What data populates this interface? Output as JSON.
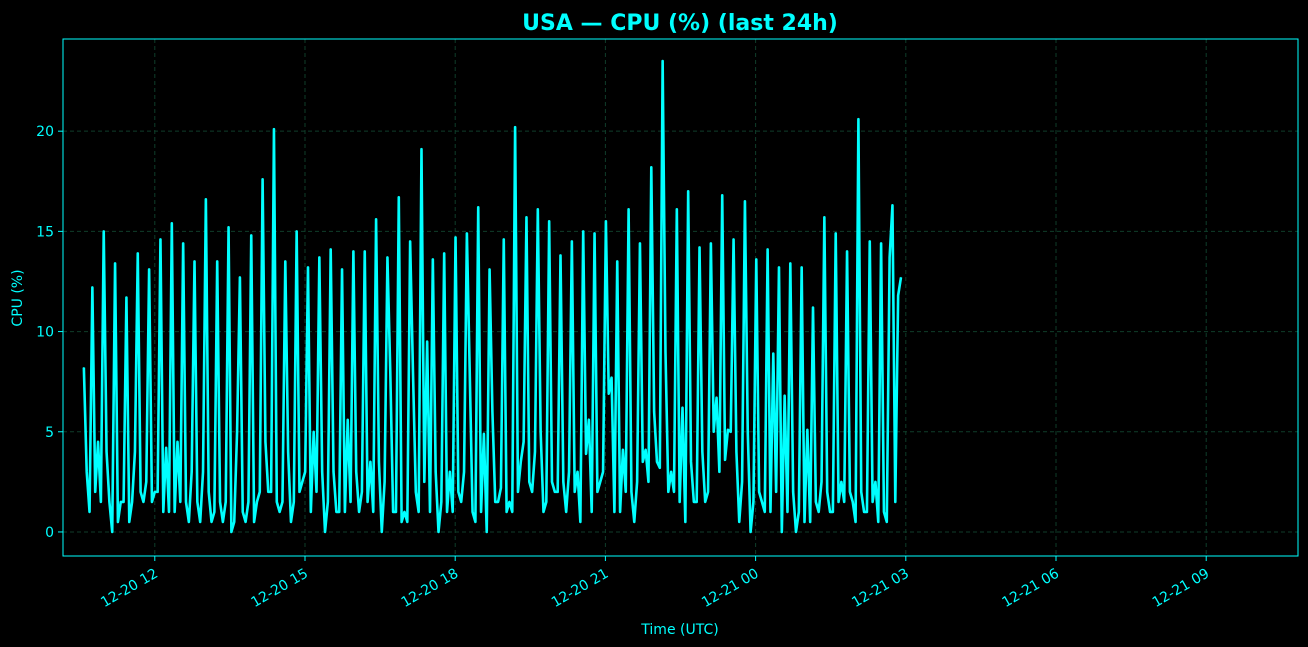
{
  "colors": {
    "background": "#000000",
    "accent": "#00ffff",
    "grid": "#0f3d2a"
  },
  "chart_data": {
    "type": "line",
    "title": "USA — CPU (%) (last 24h)",
    "xlabel": "Time (UTC)",
    "ylabel": "CPU (%)",
    "ylim": [
      -1.2,
      24.6
    ],
    "xlim": [
      "2020-12-20 10:10",
      "2020-12-21 10:50"
    ],
    "x_ticks": [
      "12-20 12",
      "12-20 15",
      "12-20 18",
      "12-20 21",
      "12-21 00",
      "12-21 03",
      "12-21 06",
      "12-21 09"
    ],
    "y_ticks": [
      0,
      5,
      10,
      15,
      20
    ],
    "grid": true,
    "series": [
      {
        "start": "2020-12-20 10:35",
        "interval_minutes": 3.4,
        "values": [
          8.2,
          3,
          1,
          12.2,
          2,
          4.5,
          1.5,
          15,
          4,
          1.5,
          0,
          13.4,
          0.5,
          1.5,
          1.5,
          11.7,
          0.5,
          1.5,
          4,
          13.9,
          2,
          1.5,
          2.5,
          13.1,
          1.5,
          2,
          2,
          14.6,
          1,
          4.2,
          1,
          15.4,
          1,
          4.5,
          1.5,
          14.4,
          1.5,
          0.5,
          3,
          13.5,
          1.5,
          0.5,
          3,
          16.6,
          2,
          0.5,
          1,
          13.5,
          1.5,
          0.5,
          1.5,
          15.2,
          0,
          0.5,
          5,
          12.7,
          1,
          0.5,
          1.5,
          14.8,
          0.5,
          1.5,
          2,
          17.6,
          4.5,
          2,
          2,
          20.1,
          1.5,
          1,
          1.5,
          13.5,
          4,
          0.5,
          1.5,
          15,
          2,
          2.5,
          3,
          13.2,
          1,
          5,
          2,
          13.7,
          3,
          0,
          1.5,
          14.1,
          3,
          1,
          1,
          13.1,
          1,
          5.6,
          1.5,
          14,
          3,
          1,
          2,
          14,
          1.5,
          3.5,
          1,
          15.6,
          3.5,
          0,
          2.5,
          13.7,
          8,
          1,
          1,
          16.7,
          0.5,
          1,
          0.5,
          14.5,
          8,
          2,
          1,
          19.1,
          2.5,
          9.5,
          1,
          13.6,
          3,
          0,
          1.5,
          13.9,
          1,
          3,
          1,
          14.7,
          2,
          1.5,
          3,
          14.9,
          8,
          1,
          0.5,
          16.2,
          1,
          4.9,
          0,
          13.1,
          6,
          1.5,
          1.5,
          2.2,
          14.6,
          1,
          1.5,
          1,
          20.2,
          2,
          3.5,
          4.5,
          15.7,
          2.5,
          2,
          4,
          16.1,
          5,
          1,
          1.5,
          15.5,
          2.5,
          2,
          2,
          13.8,
          2.5,
          1,
          3,
          14.5,
          2,
          3,
          0.5,
          15,
          3.9,
          5.6,
          1,
          14.9,
          2,
          2.5,
          3,
          15.5,
          6.9,
          7.7,
          1,
          13.5,
          1,
          4.1,
          2,
          16.1,
          2,
          0.5,
          2.5,
          14.4,
          3.5,
          4.1,
          2.5,
          18.2,
          6,
          3.5,
          3.2,
          23.5,
          9,
          2,
          3,
          2,
          16.1,
          1.5,
          6.2,
          0.5,
          17,
          3.5,
          1.5,
          1.5,
          14.2,
          4,
          1.5,
          2,
          14.4,
          5,
          6.7,
          3,
          16.8,
          3.6,
          5.1,
          5,
          14.6,
          4,
          0.5,
          2.5,
          16.5,
          5,
          0,
          1.5,
          13.6,
          2,
          1.5,
          1,
          14.1,
          1,
          8.9,
          2,
          13.2,
          0,
          6.8,
          1,
          13.4,
          2,
          0,
          1,
          13.2,
          0.5,
          5.1,
          0.5,
          11.2,
          1.5,
          1,
          2.5,
          15.7,
          2,
          1,
          1,
          14.9,
          1.5,
          2.5,
          1.5,
          14,
          2,
          1.5,
          0.5,
          20.6,
          2,
          1,
          1,
          14.5,
          1.5,
          2.5,
          0.5,
          14.4,
          1,
          0.5,
          13.7,
          16.3,
          1.5,
          11.8,
          12.7
        ]
      }
    ]
  }
}
